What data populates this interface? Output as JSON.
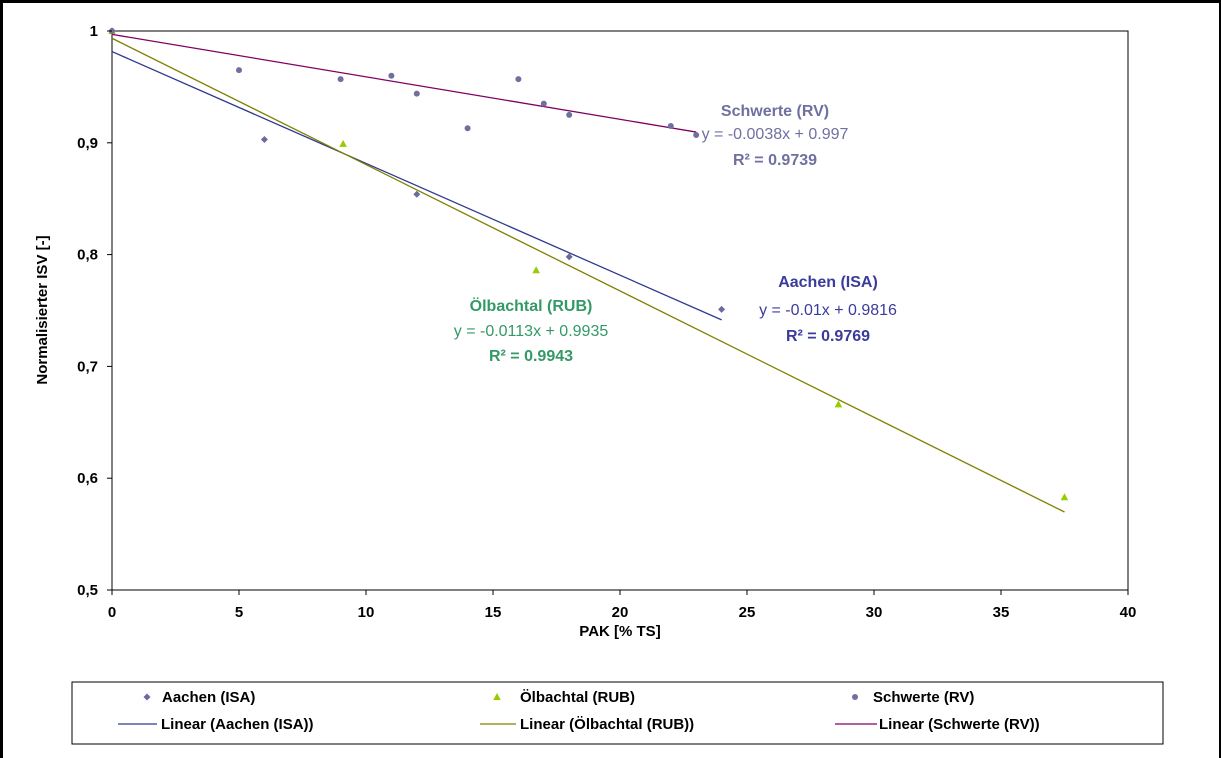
{
  "chart_data": {
    "type": "scatter",
    "xlabel": "PAK [% TS]",
    "ylabel": "Normalisierter ISV [-]",
    "xlim": [
      0,
      40
    ],
    "ylim": [
      0.5,
      1
    ],
    "x_ticks": [
      "0",
      "5",
      "10",
      "15",
      "20",
      "25",
      "30",
      "35",
      "40"
    ],
    "y_ticks": [
      "0,5",
      "0,6",
      "0,7",
      "0,8",
      "0,9",
      "1"
    ],
    "grid": false,
    "legend_position": "bottom",
    "series": [
      {
        "name": "Aachen (ISA)",
        "marker": "diamond",
        "color": "#6b6b9b",
        "points": [
          [
            0,
            1.0
          ],
          [
            6,
            0.903
          ],
          [
            12,
            0.854
          ],
          [
            18,
            0.798
          ],
          [
            24,
            0.751
          ]
        ],
        "trend": {
          "name": "Linear (Aachen (ISA))",
          "color": "#2e3a8f",
          "slope": -0.01,
          "intercept": 0.9816,
          "x_range": [
            0,
            24
          ],
          "label_title": "Aachen (ISA)",
          "equation": "y = -0.01x + 0.9816",
          "r2": "R² = 0.9769",
          "label_color": "#3b3b9b"
        }
      },
      {
        "name": "Ölbachtal (RUB)",
        "marker": "triangle",
        "color": "#99cc00",
        "points": [
          [
            0,
            1.0
          ],
          [
            9.1,
            0.899
          ],
          [
            16.7,
            0.786
          ],
          [
            28.6,
            0.666
          ],
          [
            37.5,
            0.583
          ]
        ],
        "trend": {
          "name": "Linear (Ölbachtal (RUB))",
          "color": "#808000",
          "slope": -0.0113,
          "intercept": 0.9935,
          "x_range": [
            0,
            37.5
          ],
          "label_title": "Ölbachtal (RUB)",
          "equation": "y = -0.0113x + 0.9935",
          "r2": "R² = 0.9943",
          "label_color": "#339966"
        }
      },
      {
        "name": "Schwerte (RV)",
        "marker": "circle",
        "color": "#7070a0",
        "points": [
          [
            0,
            1.0
          ],
          [
            5,
            0.965
          ],
          [
            9,
            0.957
          ],
          [
            11,
            0.96
          ],
          [
            12,
            0.944
          ],
          [
            14,
            0.913
          ],
          [
            16,
            0.957
          ],
          [
            17,
            0.935
          ],
          [
            18,
            0.925
          ],
          [
            22,
            0.915
          ],
          [
            23,
            0.907
          ]
        ],
        "trend": {
          "name": "Linear (Schwerte (RV))",
          "color": "#800060",
          "slope": -0.0038,
          "intercept": 0.997,
          "x_range": [
            0,
            23
          ],
          "label_title": "Schwerte (RV)",
          "equation": "y = -0.0038x + 0.997",
          "r2": "R² = 0.9739",
          "label_color": "#7070a0"
        }
      }
    ]
  }
}
